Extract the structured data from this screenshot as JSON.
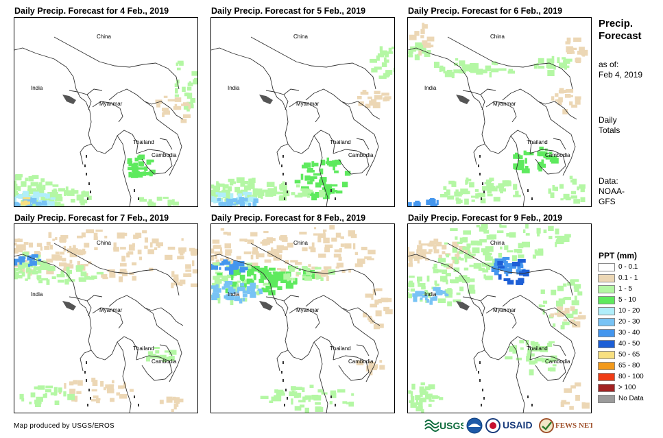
{
  "panels": [
    {
      "title": "Daily Precip. Forecast for 4 Feb., 2019"
    },
    {
      "title": "Daily Precip. Forecast for 5 Feb., 2019"
    },
    {
      "title": "Daily Precip. Forecast for 6 Feb., 2019"
    },
    {
      "title": "Daily Precip. Forecast for 7 Feb., 2019"
    },
    {
      "title": "Daily Precip. Forecast for 8 Feb., 2019"
    },
    {
      "title": "Daily Precip. Forecast for 9 Feb., 2019"
    }
  ],
  "country_labels": {
    "china": "China",
    "india": "India",
    "myanmar": "Myanmar",
    "thailand": "Thailand",
    "cambodia": "Cambodia"
  },
  "sidebar": {
    "title_line1": "Precip.",
    "title_line2": "Forecast",
    "asof_line1": "as of:",
    "asof_line2": "Feb 4, 2019",
    "totals_line1": "Daily",
    "totals_line2": "Totals",
    "data_line1": "Data:",
    "data_line2": "NOAA-",
    "data_line3": "GFS"
  },
  "legend": {
    "title": "PPT (mm)",
    "items": [
      {
        "label": "0 - 0.1",
        "color": "#ffffff"
      },
      {
        "label": "0.1 - 1",
        "color": "#ecd7b5"
      },
      {
        "label": "1 - 5",
        "color": "#b4f7a4"
      },
      {
        "label": "5 - 10",
        "color": "#5eea5e"
      },
      {
        "label": "10 - 20",
        "color": "#b0eefa"
      },
      {
        "label": "20 - 30",
        "color": "#78c3f5"
      },
      {
        "label": "30 - 40",
        "color": "#4496ee"
      },
      {
        "label": "40 - 50",
        "color": "#1d5fd6"
      },
      {
        "label": "50 - 65",
        "color": "#f8e080"
      },
      {
        "label": "65 - 80",
        "color": "#f39a1b"
      },
      {
        "label": "80 - 100",
        "color": "#f03c16"
      },
      {
        "label": "> 100",
        "color": "#a32222"
      },
      {
        "label": "No Data",
        "color": "#9b9b9b"
      }
    ]
  },
  "footer": {
    "credit": "Map produced by USGS/EROS",
    "logo_usgs": "USGS",
    "logo_usaid": "USAID",
    "logo_fewsnet": "FEWS NET"
  }
}
